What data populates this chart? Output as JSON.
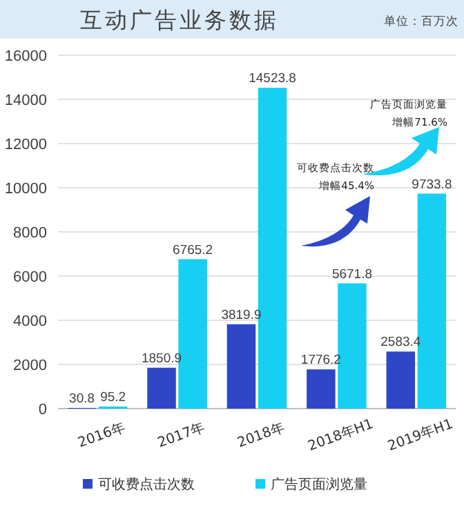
{
  "chart_data": {
    "type": "bar",
    "title": "互动广告业务数据",
    "subtitle": "单位：百万次",
    "categories": [
      "2016年",
      "2017年",
      "2018年",
      "2018年H1",
      "2019年H1"
    ],
    "series": [
      {
        "name": "可收费点击次数",
        "color": "#2f47c6",
        "values": [
          30.8,
          1850.9,
          3819.9,
          1776.2,
          2583.4
        ]
      },
      {
        "name": "广告页面浏览量",
        "color": "#17cff3",
        "values": [
          95.2,
          6765.2,
          14523.8,
          5671.8,
          9733.8
        ]
      }
    ],
    "ylim": [
      0,
      16000
    ],
    "yticks": [
      0,
      2000,
      4000,
      6000,
      8000,
      10000,
      12000,
      14000,
      16000
    ],
    "grid": "y",
    "legend": "bottom",
    "data_labels": true,
    "annotations": [
      "可收费点击次数",
      "增幅45.4%",
      "广告页面浏览量",
      "增幅71.6%"
    ]
  }
}
